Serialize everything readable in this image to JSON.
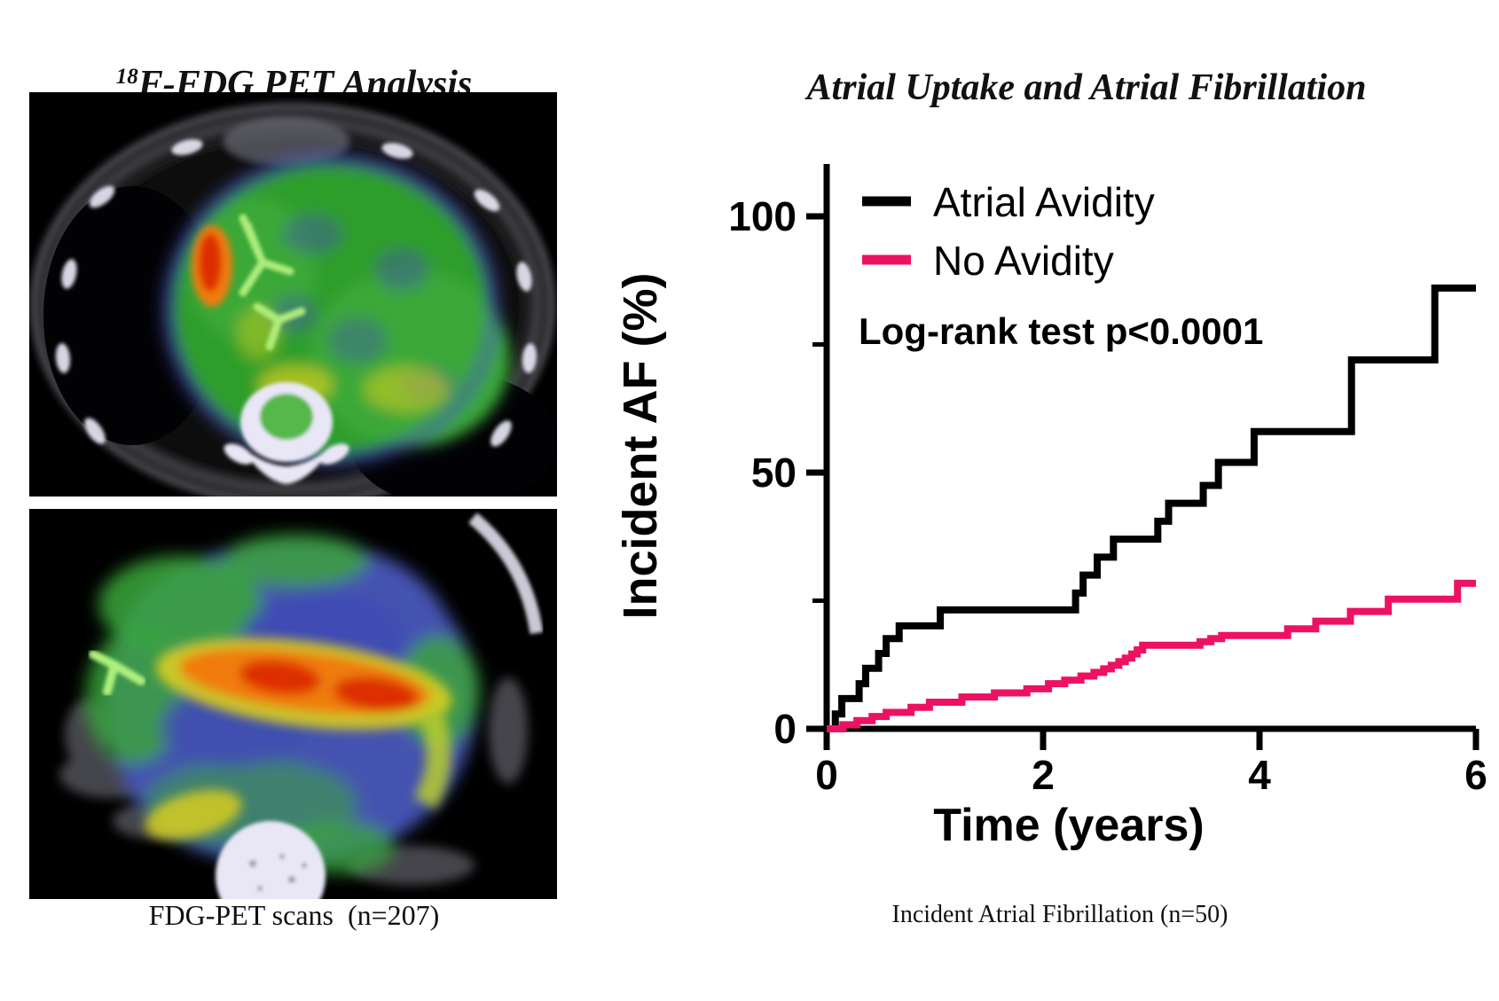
{
  "panels": {
    "left": {
      "title_sup": "18",
      "title_main": "F-FDG PET Analysis",
      "caption": "FDG-PET scans  (n=207)"
    },
    "right": {
      "title": "Atrial Uptake and Atrial Fibrillation",
      "caption": "Incident Atrial Fibrillation (n=50)"
    }
  },
  "chart_data": {
    "type": "line",
    "subtype": "kaplan-meier-step",
    "title": "Atrial Uptake and Atrial Fibrillation",
    "xlabel": "Time (years)",
    "ylabel": "Incident AF (%)",
    "annotation": "Log-rank test p<0.0001",
    "xlim": [
      0,
      6
    ],
    "ylim": [
      0,
      110
    ],
    "x_ticks": [
      0,
      2,
      4,
      6
    ],
    "y_ticks_major": [
      0,
      50,
      100
    ],
    "y_ticks_minor": [
      25,
      75
    ],
    "grid": false,
    "legend_position": "top-left-inside",
    "series": [
      {
        "name": "Atrial Avidity",
        "color": "#000000",
        "start": [
          0,
          0
        ],
        "steps": [
          [
            0.08,
            2.9
          ],
          [
            0.14,
            5.9
          ],
          [
            0.3,
            8.8
          ],
          [
            0.36,
            11.8
          ],
          [
            0.48,
            14.7
          ],
          [
            0.55,
            17.6
          ],
          [
            0.67,
            20.1
          ],
          [
            1.05,
            23.2
          ],
          [
            2.3,
            26.5
          ],
          [
            2.37,
            30.0
          ],
          [
            2.5,
            33.5
          ],
          [
            2.65,
            37.0
          ],
          [
            3.06,
            40.5
          ],
          [
            3.16,
            44.0
          ],
          [
            3.48,
            47.5
          ],
          [
            3.62,
            52.0
          ],
          [
            3.95,
            58.0
          ],
          [
            4.85,
            72.0
          ],
          [
            5.62,
            86.0
          ]
        ],
        "end_value": 86.0
      },
      {
        "name": "No Avidity",
        "color": "#ED1164",
        "start": [
          0,
          0
        ],
        "steps": [
          [
            0.15,
            0.8
          ],
          [
            0.28,
            1.6
          ],
          [
            0.42,
            2.4
          ],
          [
            0.55,
            3.2
          ],
          [
            0.78,
            4.2
          ],
          [
            0.95,
            5.2
          ],
          [
            1.25,
            6.2
          ],
          [
            1.55,
            7.0
          ],
          [
            1.85,
            7.8
          ],
          [
            2.05,
            8.8
          ],
          [
            2.2,
            9.5
          ],
          [
            2.35,
            10.3
          ],
          [
            2.47,
            11.0
          ],
          [
            2.56,
            11.7
          ],
          [
            2.63,
            12.4
          ],
          [
            2.7,
            13.1
          ],
          [
            2.76,
            13.8
          ],
          [
            2.82,
            14.6
          ],
          [
            2.87,
            15.4
          ],
          [
            2.92,
            16.3
          ],
          [
            3.45,
            17.0
          ],
          [
            3.55,
            17.6
          ],
          [
            3.65,
            18.2
          ],
          [
            4.26,
            19.5
          ],
          [
            4.52,
            21.0
          ],
          [
            4.84,
            22.9
          ],
          [
            5.19,
            25.3
          ],
          [
            5.83,
            28.4
          ]
        ],
        "end_value": 28.4
      }
    ]
  },
  "colors": {
    "curve_atrial_avidity": "#000000",
    "curve_no_avidity": "#ED1164",
    "axis": "#000000",
    "background": "#FFFFFF",
    "pet_green": "#3AA838",
    "pet_cool_blue": "#4553B0",
    "pet_warm_yellow": "#D8CE20",
    "pet_hot_red": "#DD2E06",
    "pet_hot_orange": "#F07C10",
    "ct_bone_white": "#E9E7F6",
    "ct_tissue_gray": "#7F7F8A"
  }
}
